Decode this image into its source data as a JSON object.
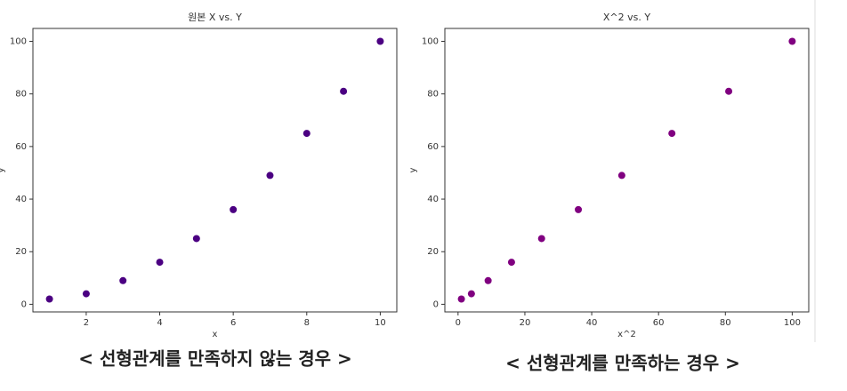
{
  "chart_data": [
    {
      "type": "scatter",
      "title": "원본 X vs. Y",
      "xlabel": "x",
      "ylabel": "y",
      "color": "#4b0082",
      "x": [
        1,
        2,
        3,
        4,
        5,
        6,
        7,
        8,
        9,
        10
      ],
      "series": [
        {
          "values": [
            2,
            4,
            9,
            16,
            25,
            36,
            49,
            65,
            81,
            100
          ]
        }
      ],
      "xlim": [
        0.55,
        10.45
      ],
      "ylim": [
        -2.9,
        104.9
      ],
      "xticks": [
        2,
        4,
        6,
        8,
        10
      ],
      "yticks": [
        0,
        20,
        40,
        60,
        80,
        100
      ]
    },
    {
      "type": "scatter",
      "title": "X^2 vs. Y",
      "xlabel": "x^2",
      "ylabel": "y",
      "color": "#800080",
      "x": [
        1,
        4,
        9,
        16,
        25,
        36,
        49,
        64,
        81,
        100
      ],
      "series": [
        {
          "values": [
            2,
            4,
            9,
            16,
            25,
            36,
            49,
            65,
            81,
            100
          ]
        }
      ],
      "xlim": [
        -3.95,
        104.95
      ],
      "ylim": [
        -2.9,
        104.9
      ],
      "xticks": [
        0,
        20,
        40,
        60,
        80,
        100
      ],
      "yticks": [
        0,
        20,
        40,
        60,
        80,
        100
      ]
    }
  ],
  "captions": [
    "< 선형관계를 만족하지 않는 경우 >",
    "< 선형관계를 만족하는 경우 >"
  ]
}
